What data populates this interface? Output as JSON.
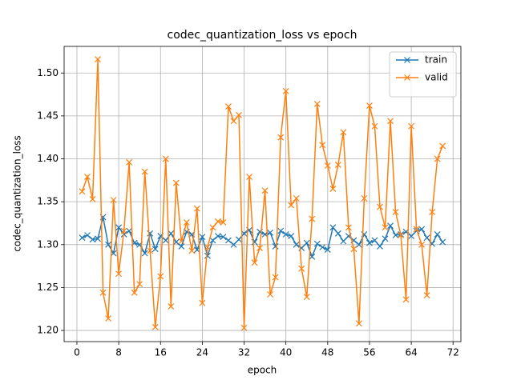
{
  "chart_data": {
    "type": "line",
    "title": "codec_quantization_loss vs epoch",
    "x_label": "epoch",
    "y_label": "codec_quantization_loss",
    "x": [
      1,
      2,
      3,
      4,
      5,
      6,
      7,
      8,
      9,
      10,
      11,
      12,
      13,
      14,
      15,
      16,
      17,
      18,
      19,
      20,
      21,
      22,
      23,
      24,
      25,
      26,
      27,
      28,
      29,
      30,
      31,
      32,
      33,
      34,
      35,
      36,
      37,
      38,
      39,
      40,
      41,
      42,
      43,
      44,
      45,
      46,
      47,
      48,
      49,
      50,
      51,
      52,
      53,
      54,
      55,
      56,
      57,
      58,
      59,
      60,
      61,
      62,
      63,
      64,
      65,
      66,
      67,
      68,
      69,
      70
    ],
    "series": [
      {
        "name": "train",
        "color": "#1f77b4",
        "values": [
          1.308,
          1.311,
          1.306,
          1.307,
          1.332,
          1.3,
          1.29,
          1.32,
          1.312,
          1.316,
          1.302,
          1.3,
          1.29,
          1.313,
          1.295,
          1.31,
          1.305,
          1.313,
          1.303,
          1.298,
          1.315,
          1.312,
          1.294,
          1.309,
          1.287,
          1.305,
          1.31,
          1.309,
          1.305,
          1.3,
          1.306,
          1.313,
          1.317,
          1.303,
          1.315,
          1.312,
          1.314,
          1.298,
          1.316,
          1.312,
          1.31,
          1.3,
          1.296,
          1.302,
          1.286,
          1.301,
          1.297,
          1.294,
          1.32,
          1.313,
          1.304,
          1.31,
          1.305,
          1.3,
          1.312,
          1.302,
          1.305,
          1.298,
          1.307,
          1.322,
          1.311,
          1.312,
          1.315,
          1.31,
          1.316,
          1.318,
          1.308,
          1.301,
          1.312,
          1.303
        ]
      },
      {
        "name": "valid",
        "color": "#ff7f0e",
        "values": [
          1.362,
          1.379,
          1.353,
          1.516,
          1.244,
          1.214,
          1.352,
          1.266,
          1.316,
          1.396,
          1.244,
          1.254,
          1.385,
          1.293,
          1.204,
          1.263,
          1.4,
          1.228,
          1.372,
          1.304,
          1.326,
          1.293,
          1.342,
          1.232,
          1.297,
          1.32,
          1.327,
          1.326,
          1.461,
          1.444,
          1.451,
          1.203,
          1.379,
          1.279,
          1.296,
          1.363,
          1.242,
          1.262,
          1.425,
          1.479,
          1.346,
          1.354,
          1.272,
          1.239,
          1.33,
          1.464,
          1.416,
          1.392,
          1.365,
          1.393,
          1.431,
          1.32,
          1.295,
          1.208,
          1.354,
          1.462,
          1.438,
          1.344,
          1.32,
          1.444,
          1.338,
          1.311,
          1.236,
          1.438,
          1.318,
          1.3,
          1.241,
          1.338,
          1.4,
          1.415
        ]
      }
    ],
    "xlim": [
      -2.45,
      73.5
    ],
    "xticks": [
      0,
      8,
      16,
      24,
      32,
      40,
      48,
      56,
      64,
      72
    ],
    "ylim": [
      1.187,
      1.531
    ],
    "yticks": [
      {
        "value": 1.2,
        "label": "1.20"
      },
      {
        "value": 1.25,
        "label": "1.25"
      },
      {
        "value": 1.3,
        "label": "1.30"
      },
      {
        "value": 1.35,
        "label": "1.35"
      },
      {
        "value": 1.4,
        "label": "1.40"
      },
      {
        "value": 1.45,
        "label": "1.45"
      },
      {
        "value": 1.5,
        "label": "1.50"
      }
    ],
    "grid": true,
    "legend": "upper right",
    "marker": "x"
  }
}
